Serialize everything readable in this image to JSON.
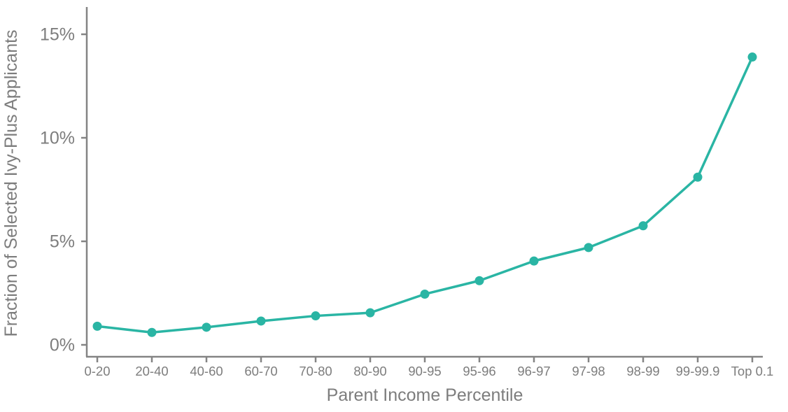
{
  "figure": {
    "background": "#ffffff"
  },
  "chart_data": {
    "type": "line",
    "title": "",
    "xlabel": "Parent Income Percentile",
    "ylabel": "Fraction of Selected Ivy-Plus Applicants",
    "categories": [
      "0-20",
      "20-40",
      "40-60",
      "60-70",
      "70-80",
      "80-90",
      "90-95",
      "95-96",
      "96-97",
      "97-98",
      "98-99",
      "99-99.9",
      "Top 0.1"
    ],
    "series": [
      {
        "name": "Fraction of Selected Ivy-Plus Applicants",
        "values": [
          0.9,
          0.6,
          0.85,
          1.15,
          1.4,
          1.55,
          2.45,
          3.1,
          4.05,
          4.7,
          5.75,
          8.1,
          13.9
        ]
      }
    ],
    "y_ticks": [
      0,
      5,
      10,
      15
    ],
    "y_tick_labels": [
      "0%",
      "5%",
      "10%",
      "15%"
    ],
    "ylim": [
      0,
      16.3
    ],
    "grid": false,
    "legend_position": "none",
    "colors": {
      "line": "#2ab5a4",
      "marker": "#2ab5a4",
      "axis": "#848484",
      "text": "#7d7d7d"
    }
  }
}
